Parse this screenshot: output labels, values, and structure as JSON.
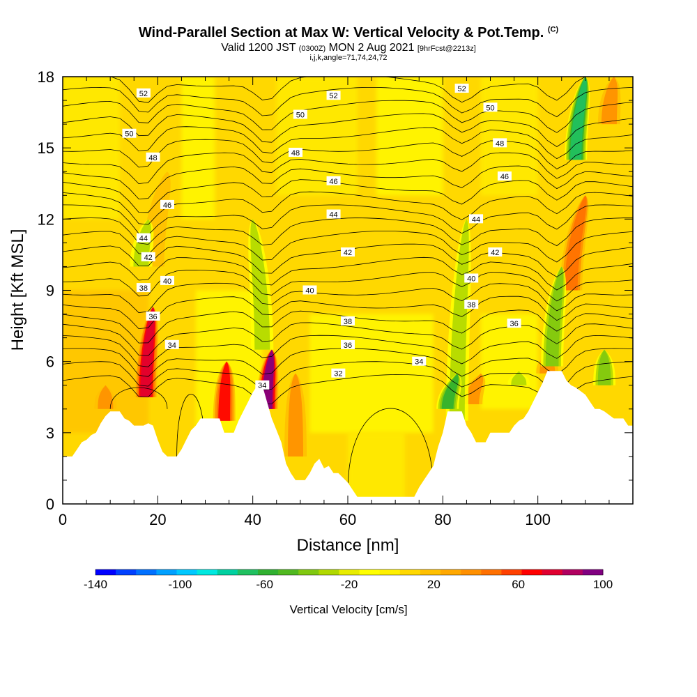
{
  "title": {
    "main": "Wind-Parallel Section at Max W: Vertical Velocity & Pot.Temp.",
    "copyright": "(C)",
    "valid_prefix": "Valid 1200 JST",
    "valid_utc": "(0300Z)",
    "valid_date": "MON 2 Aug 2021",
    "forecast": "[9hrFcst@2213z]",
    "indices": "i,j,k,angle=71,74,24,72"
  },
  "chart_data": {
    "type": "heatmap",
    "xlabel": "Distance [nm]",
    "ylabel": "Height [Kft MSL]",
    "xlim": [
      0,
      120
    ],
    "ylim": [
      0,
      18
    ],
    "x_ticks": [
      "0",
      "20",
      "40",
      "60",
      "80",
      "100"
    ],
    "y_ticks": [
      "0",
      "3",
      "6",
      "9",
      "12",
      "15",
      "18"
    ],
    "colorbar": {
      "title": "Vertical Velocity [cm/s]",
      "range": [
        -140,
        100
      ],
      "step": 10,
      "tick_labels": [
        "-140",
        "-100",
        "-60",
        "-20",
        "20",
        "60",
        "100"
      ],
      "colors": [
        "#0000ff",
        "#0040ff",
        "#0070ff",
        "#00a0ff",
        "#00c8ff",
        "#00e8e0",
        "#00d0a0",
        "#20c060",
        "#30b030",
        "#50b820",
        "#80c810",
        "#b0d800",
        "#e8ec00",
        "#ffff00",
        "#fff000",
        "#ffd800",
        "#ffc000",
        "#ffa800",
        "#ff9000",
        "#ff7000",
        "#ff4000",
        "#ff0000",
        "#e00030",
        "#b00060",
        "#800080"
      ]
    },
    "terrain_profile": [
      [
        0,
        2.0
      ],
      [
        2,
        2.0
      ],
      [
        3,
        2.3
      ],
      [
        4,
        2.6
      ],
      [
        5,
        2.7
      ],
      [
        6,
        2.9
      ],
      [
        7,
        3.0
      ],
      [
        8,
        3.4
      ],
      [
        9,
        3.7
      ],
      [
        10,
        3.9
      ],
      [
        12,
        3.9
      ],
      [
        13,
        3.6
      ],
      [
        14,
        3.5
      ],
      [
        15,
        3.3
      ],
      [
        17,
        3.3
      ],
      [
        18,
        3.4
      ],
      [
        19,
        3.3
      ],
      [
        20,
        2.7
      ],
      [
        21,
        2.2
      ],
      [
        22,
        2.0
      ],
      [
        24,
        2.0
      ],
      [
        25,
        2.3
      ],
      [
        26,
        2.7
      ],
      [
        27,
        3.1
      ],
      [
        28,
        3.3
      ],
      [
        29,
        3.6
      ],
      [
        33,
        3.6
      ],
      [
        34,
        3.0
      ],
      [
        36,
        3.0
      ],
      [
        37,
        3.5
      ],
      [
        38,
        3.9
      ],
      [
        39,
        4.3
      ],
      [
        40,
        4.7
      ],
      [
        41,
        5.0
      ],
      [
        42,
        5.0
      ],
      [
        43,
        4.3
      ],
      [
        44,
        3.6
      ],
      [
        45,
        3.1
      ],
      [
        46,
        2.6
      ],
      [
        47,
        1.7
      ],
      [
        48,
        1.3
      ],
      [
        49,
        1.0
      ],
      [
        51,
        1.0
      ],
      [
        52,
        1.3
      ],
      [
        53,
        1.7
      ],
      [
        54,
        1.9
      ],
      [
        55,
        1.5
      ],
      [
        56,
        1.6
      ],
      [
        57,
        1.3
      ],
      [
        58,
        1.3
      ],
      [
        60,
        0.9
      ],
      [
        61,
        0.6
      ],
      [
        62,
        0.3
      ],
      [
        74,
        0.3
      ],
      [
        75,
        0.7
      ],
      [
        76,
        1.0
      ],
      [
        77,
        1.3
      ],
      [
        78,
        1.6
      ],
      [
        79,
        2.4
      ],
      [
        80,
        3.0
      ],
      [
        81,
        3.9
      ],
      [
        84,
        3.9
      ],
      [
        85,
        3.3
      ],
      [
        86,
        3.0
      ],
      [
        87,
        2.6
      ],
      [
        89,
        2.6
      ],
      [
        90,
        3.0
      ],
      [
        94,
        3.0
      ],
      [
        95,
        3.3
      ],
      [
        96,
        3.5
      ],
      [
        97,
        3.6
      ],
      [
        98,
        3.9
      ],
      [
        99,
        4.3
      ],
      [
        100,
        4.7
      ],
      [
        101,
        5.1
      ],
      [
        102,
        5.6
      ],
      [
        105,
        5.6
      ],
      [
        106,
        5.2
      ],
      [
        107,
        5.0
      ],
      [
        108,
        4.9
      ],
      [
        110,
        4.6
      ],
      [
        111,
        4.3
      ],
      [
        112,
        4.0
      ],
      [
        113,
        4.0
      ],
      [
        114,
        3.9
      ],
      [
        116,
        3.6
      ],
      [
        118,
        3.6
      ],
      [
        119,
        3.3
      ],
      [
        120,
        3.3
      ]
    ],
    "contour_labels": [
      {
        "text": "52",
        "x": 17,
        "y": 17.3
      },
      {
        "text": "52",
        "x": 57,
        "y": 17.2
      },
      {
        "text": "52",
        "x": 84,
        "y": 17.5
      },
      {
        "text": "50",
        "x": 14,
        "y": 15.6
      },
      {
        "text": "50",
        "x": 50,
        "y": 16.4
      },
      {
        "text": "50",
        "x": 90,
        "y": 16.7
      },
      {
        "text": "48",
        "x": 19,
        "y": 14.6
      },
      {
        "text": "48",
        "x": 49,
        "y": 14.8
      },
      {
        "text": "48",
        "x": 92,
        "y": 15.2
      },
      {
        "text": "46",
        "x": 57,
        "y": 13.6
      },
      {
        "text": "46",
        "x": 93,
        "y": 13.8
      },
      {
        "text": "46",
        "x": 22,
        "y": 12.6
      },
      {
        "text": "44",
        "x": 57,
        "y": 12.2
      },
      {
        "text": "44",
        "x": 87,
        "y": 12.0
      },
      {
        "text": "44",
        "x": 17,
        "y": 11.2
      },
      {
        "text": "42",
        "x": 18,
        "y": 10.4
      },
      {
        "text": "42",
        "x": 60,
        "y": 10.6
      },
      {
        "text": "42",
        "x": 91,
        "y": 10.6
      },
      {
        "text": "40",
        "x": 22,
        "y": 9.4
      },
      {
        "text": "40",
        "x": 52,
        "y": 9.0
      },
      {
        "text": "40",
        "x": 86,
        "y": 9.5
      },
      {
        "text": "38",
        "x": 17,
        "y": 9.1
      },
      {
        "text": "38",
        "x": 86,
        "y": 8.4
      },
      {
        "text": "38",
        "x": 60,
        "y": 7.7
      },
      {
        "text": "36",
        "x": 19,
        "y": 7.9
      },
      {
        "text": "36",
        "x": 95,
        "y": 7.6
      },
      {
        "text": "36",
        "x": 60,
        "y": 6.7
      },
      {
        "text": "34",
        "x": 23,
        "y": 6.7
      },
      {
        "text": "34",
        "x": 75,
        "y": 6.0
      },
      {
        "text": "34",
        "x": 42,
        "y": 5.0
      },
      {
        "text": "32",
        "x": 58,
        "y": 5.5
      }
    ],
    "updraft_bands": [
      {
        "x_base": 17.5,
        "y_base": 4.5,
        "x_top": 19,
        "y_top": 8.3,
        "w_max": 95
      },
      {
        "x_base": 34,
        "y_base": 3.5,
        "x_top": 34.5,
        "y_top": 6.0,
        "w_max": 70
      },
      {
        "x_base": 43,
        "y_base": 4.0,
        "x_top": 44,
        "y_top": 6.5,
        "w_max": 100
      },
      {
        "x_base": 49,
        "y_base": 2.0,
        "x_top": 49,
        "y_top": 5.5,
        "w_max": 45
      },
      {
        "x_base": 9,
        "y_base": 4.0,
        "x_top": 9,
        "y_top": 5.0,
        "w_max": 40
      },
      {
        "x_base": 19,
        "y_base": 10.0,
        "x_top": 22,
        "y_top": 14.0,
        "w_max": 35
      },
      {
        "x_base": 107,
        "y_base": 9.0,
        "x_top": 110,
        "y_top": 13.0,
        "w_max": 55
      },
      {
        "x_base": 86,
        "y_base": 4.2,
        "x_top": 88,
        "y_top": 5.5,
        "w_max": 45
      },
      {
        "x_base": 102,
        "y_base": 5.5,
        "x_top": 102,
        "y_top": 6.3,
        "w_max": 45
      },
      {
        "x_base": 115,
        "y_base": 16.0,
        "x_top": 116,
        "y_top": 18.0,
        "w_max": 45
      }
    ],
    "downdraft_bands": [
      {
        "x_base": 16.5,
        "y_base": 10.0,
        "x_top": 18,
        "y_top": 12.0,
        "w_min": -35
      },
      {
        "x_base": 42,
        "y_base": 6.5,
        "x_top": 40,
        "y_top": 12.0,
        "w_min": -30
      },
      {
        "x_base": 83,
        "y_base": 3.5,
        "x_top": 85,
        "y_top": 12.0,
        "w_min": -35
      },
      {
        "x_base": 81,
        "y_base": 4.0,
        "x_top": 83,
        "y_top": 5.5,
        "w_min": -60
      },
      {
        "x_base": 103,
        "y_base": 5.8,
        "x_top": 105,
        "y_top": 10.0,
        "w_min": -45
      },
      {
        "x_base": 108,
        "y_base": 14.5,
        "x_top": 110,
        "y_top": 18.0,
        "w_min": -70
      },
      {
        "x_base": 114,
        "y_base": 5.0,
        "x_top": 114,
        "y_top": 6.5,
        "w_min": -45
      },
      {
        "x_base": 96,
        "y_base": 5.0,
        "x_top": 96,
        "y_top": 5.6,
        "w_min": -25
      }
    ],
    "grid": false
  }
}
